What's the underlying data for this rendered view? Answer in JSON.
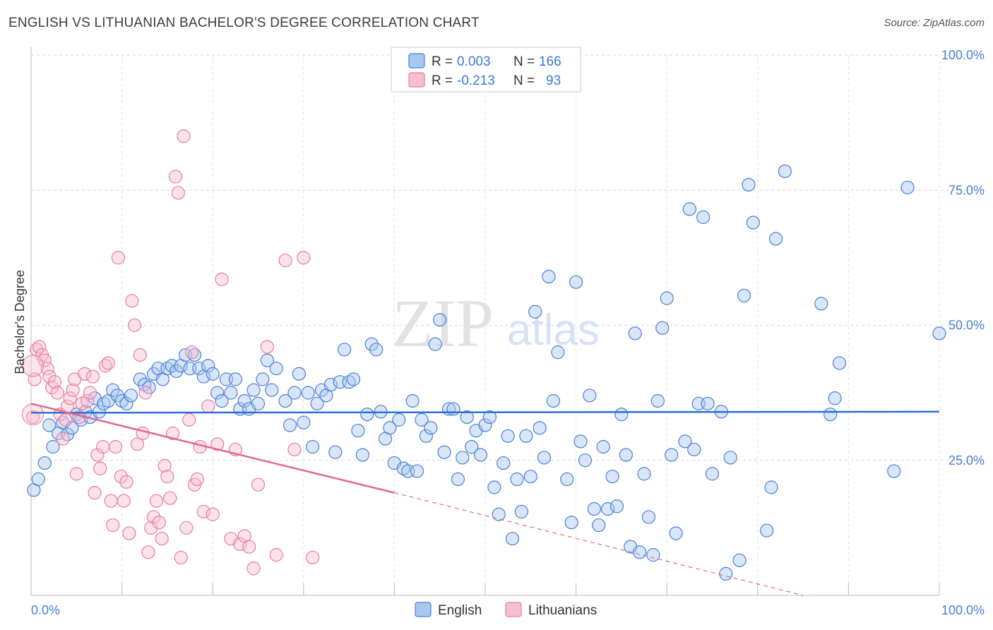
{
  "header": {
    "title": "ENGLISH VS LITHUANIAN BACHELOR'S DEGREE CORRELATION CHART",
    "source": "Source: ZipAtlas.com"
  },
  "watermark": {
    "zip": "ZIP",
    "atlas": "atlas"
  },
  "legend_box": {
    "rows": [
      {
        "r_label": "R =",
        "r_value": "0.003",
        "n_label": "N =",
        "n_value": "166",
        "color": "#a8c8f0",
        "stroke": "#4a7fd6"
      },
      {
        "r_label": "R =",
        "r_value": "-0.213",
        "n_label": "N =",
        "n_value": "93",
        "color": "#f8bfd0",
        "stroke": "#e87aa0"
      }
    ]
  },
  "bottom_legend": {
    "items": [
      {
        "label": "English",
        "color": "#a8c8f0",
        "stroke": "#4a7fd6"
      },
      {
        "label": "Lithuanians",
        "color": "#f8bfd0",
        "stroke": "#e87aa0"
      }
    ]
  },
  "chart_data": {
    "type": "scatter",
    "title": "ENGLISH VS LITHUANIAN BACHELOR'S DEGREE CORRELATION CHART",
    "xlabel": "",
    "ylabel": "Bachelor's Degree",
    "xlim": [
      0,
      100
    ],
    "ylim": [
      0,
      100
    ],
    "x_tick_labels": [
      "0.0%",
      "100.0%"
    ],
    "y_tick_labels": [
      {
        "value": 100,
        "label": "100.0%"
      },
      {
        "value": 75,
        "label": "75.0%"
      },
      {
        "value": 50,
        "label": "50.0%"
      },
      {
        "value": 25,
        "label": "25.0%"
      }
    ],
    "grid": true,
    "legend_position": "top-center",
    "series": [
      {
        "name": "English",
        "color": "#a8c8f0",
        "stroke": "#4a7fd6",
        "line_color": "#2f6fd0",
        "R": 0.003,
        "N": 166,
        "trend": {
          "x": [
            0,
            100
          ],
          "y": [
            33.8,
            34.0
          ]
        },
        "points": [
          [
            0.3,
            19.5
          ],
          [
            0.8,
            21.5
          ],
          [
            1.5,
            24.5
          ],
          [
            2.0,
            31.5
          ],
          [
            2.4,
            27.5
          ],
          [
            3.0,
            30.0
          ],
          [
            3.5,
            32.0
          ],
          [
            4.0,
            29.8
          ],
          [
            4.5,
            31.0
          ],
          [
            5.0,
            33.5
          ],
          [
            5.5,
            32.5
          ],
          [
            6.0,
            34.0
          ],
          [
            6.5,
            33.0
          ],
          [
            7.0,
            36.5
          ],
          [
            7.5,
            34.0
          ],
          [
            8.0,
            35.5
          ],
          [
            8.5,
            36.0
          ],
          [
            9.0,
            38.0
          ],
          [
            9.5,
            37.0
          ],
          [
            10.0,
            36.0
          ],
          [
            10.5,
            35.5
          ],
          [
            11.0,
            37.0
          ],
          [
            12.0,
            40.0
          ],
          [
            12.5,
            39.0
          ],
          [
            13.0,
            38.5
          ],
          [
            13.5,
            41.0
          ],
          [
            14.0,
            42.0
          ],
          [
            14.5,
            40.0
          ],
          [
            15.0,
            42.0
          ],
          [
            15.5,
            42.5
          ],
          [
            16.0,
            41.5
          ],
          [
            16.5,
            42.5
          ],
          [
            17.0,
            44.5
          ],
          [
            17.5,
            42.0
          ],
          [
            18.0,
            44.5
          ],
          [
            18.5,
            42.0
          ],
          [
            19.0,
            40.5
          ],
          [
            19.5,
            42.5
          ],
          [
            20.0,
            41.0
          ],
          [
            20.5,
            37.5
          ],
          [
            21.0,
            36.0
          ],
          [
            21.5,
            40.0
          ],
          [
            22.0,
            37.5
          ],
          [
            22.5,
            40.0
          ],
          [
            23.0,
            34.5
          ],
          [
            23.5,
            36.0
          ],
          [
            24.0,
            34.5
          ],
          [
            24.5,
            38.0
          ],
          [
            25.0,
            35.5
          ],
          [
            25.5,
            40.0
          ],
          [
            26.0,
            43.5
          ],
          [
            26.5,
            38.0
          ],
          [
            27.0,
            42.0
          ],
          [
            28.0,
            36.0
          ],
          [
            28.5,
            31.5
          ],
          [
            29.0,
            37.5
          ],
          [
            29.5,
            41.0
          ],
          [
            30.0,
            32.0
          ],
          [
            30.5,
            37.5
          ],
          [
            31.0,
            27.5
          ],
          [
            31.5,
            35.5
          ],
          [
            32.0,
            38.0
          ],
          [
            32.5,
            37.0
          ],
          [
            33.0,
            39.0
          ],
          [
            33.5,
            26.5
          ],
          [
            34.0,
            39.5
          ],
          [
            34.5,
            45.5
          ],
          [
            35.0,
            39.5
          ],
          [
            35.5,
            40.0
          ],
          [
            36.0,
            30.5
          ],
          [
            36.5,
            26.0
          ],
          [
            37.0,
            33.5
          ],
          [
            37.5,
            46.5
          ],
          [
            38.0,
            45.5
          ],
          [
            38.5,
            34.0
          ],
          [
            39.0,
            29.0
          ],
          [
            39.5,
            31.0
          ],
          [
            40.0,
            24.5
          ],
          [
            40.5,
            32.5
          ],
          [
            41.0,
            23.5
          ],
          [
            41.5,
            23.0
          ],
          [
            42.0,
            36.0
          ],
          [
            42.5,
            23.0
          ],
          [
            43.0,
            32.5
          ],
          [
            43.5,
            29.5
          ],
          [
            44.0,
            31.0
          ],
          [
            44.5,
            46.5
          ],
          [
            45.0,
            51.0
          ],
          [
            45.5,
            26.5
          ],
          [
            46.0,
            34.5
          ],
          [
            46.5,
            34.5
          ],
          [
            47.0,
            21.5
          ],
          [
            47.5,
            25.5
          ],
          [
            48.0,
            33.0
          ],
          [
            48.5,
            27.5
          ],
          [
            49.0,
            30.5
          ],
          [
            49.5,
            26.0
          ],
          [
            50.0,
            31.5
          ],
          [
            50.5,
            33.0
          ],
          [
            51.0,
            20.0
          ],
          [
            51.5,
            15.0
          ],
          [
            52.0,
            24.5
          ],
          [
            52.5,
            29.5
          ],
          [
            53.0,
            10.5
          ],
          [
            53.5,
            21.5
          ],
          [
            54.0,
            15.5
          ],
          [
            54.5,
            29.5
          ],
          [
            55.0,
            22.0
          ],
          [
            55.5,
            52.5
          ],
          [
            56.0,
            31.0
          ],
          [
            56.5,
            25.5
          ],
          [
            57.0,
            59.0
          ],
          [
            57.5,
            36.0
          ],
          [
            58.0,
            45.0
          ],
          [
            59.0,
            21.5
          ],
          [
            59.5,
            13.5
          ],
          [
            60.0,
            58.0
          ],
          [
            60.5,
            28.5
          ],
          [
            61.0,
            25.0
          ],
          [
            61.5,
            37.0
          ],
          [
            62.0,
            16.0
          ],
          [
            62.5,
            13.0
          ],
          [
            63.0,
            27.5
          ],
          [
            63.5,
            16.0
          ],
          [
            64.0,
            22.0
          ],
          [
            64.5,
            16.5
          ],
          [
            65.0,
            33.5
          ],
          [
            65.5,
            26.0
          ],
          [
            66.0,
            9.0
          ],
          [
            66.5,
            48.5
          ],
          [
            67.0,
            8.0
          ],
          [
            67.5,
            22.5
          ],
          [
            68.0,
            14.5
          ],
          [
            68.5,
            7.5
          ],
          [
            69.0,
            36.0
          ],
          [
            69.5,
            49.5
          ],
          [
            70.0,
            55.0
          ],
          [
            70.5,
            26.0
          ],
          [
            71.0,
            11.5
          ],
          [
            72.0,
            28.5
          ],
          [
            72.5,
            71.5
          ],
          [
            73.0,
            27.0
          ],
          [
            73.5,
            35.5
          ],
          [
            74.0,
            70.0
          ],
          [
            74.5,
            35.5
          ],
          [
            75.0,
            22.5
          ],
          [
            76.0,
            34.0
          ],
          [
            76.5,
            4.0
          ],
          [
            77.0,
            25.5
          ],
          [
            78.0,
            6.5
          ],
          [
            78.5,
            55.5
          ],
          [
            79.0,
            76.0
          ],
          [
            79.5,
            69.0
          ],
          [
            81.0,
            12.0
          ],
          [
            81.5,
            20.0
          ],
          [
            82.0,
            66.0
          ],
          [
            83.0,
            78.5
          ],
          [
            87.0,
            54.0
          ],
          [
            88.0,
            33.5
          ],
          [
            88.5,
            36.5
          ],
          [
            89.0,
            43.0
          ],
          [
            95.0,
            23.0
          ],
          [
            96.5,
            75.5
          ],
          [
            100.0,
            48.5
          ]
        ]
      },
      {
        "name": "Lithuanians",
        "color": "#f8bfd0",
        "stroke": "#e87aa0",
        "line_color": "#e06892",
        "R": -0.213,
        "N": 93,
        "trend": {
          "x": [
            0,
            40
          ],
          "y": [
            35.5,
            19.0
          ]
        },
        "trend_dashed": {
          "x": [
            40,
            85
          ],
          "y": [
            19.0,
            0.0
          ]
        },
        "points": [
          [
            0.2,
            33.0
          ],
          [
            0.4,
            40.0
          ],
          [
            0.6,
            45.5
          ],
          [
            0.9,
            46.0
          ],
          [
            1.2,
            44.5
          ],
          [
            1.5,
            43.5
          ],
          [
            1.8,
            42.0
          ],
          [
            2.0,
            40.5
          ],
          [
            2.3,
            38.5
          ],
          [
            2.6,
            39.5
          ],
          [
            2.9,
            37.5
          ],
          [
            3.2,
            33.5
          ],
          [
            3.5,
            29.0
          ],
          [
            3.8,
            32.5
          ],
          [
            4.0,
            35.0
          ],
          [
            4.3,
            36.5
          ],
          [
            4.6,
            38.0
          ],
          [
            4.8,
            40.0
          ],
          [
            5.0,
            22.5
          ],
          [
            5.3,
            33.0
          ],
          [
            5.6,
            35.5
          ],
          [
            5.9,
            41.0
          ],
          [
            6.2,
            36.0
          ],
          [
            6.5,
            37.5
          ],
          [
            6.8,
            40.5
          ],
          [
            7.0,
            19.0
          ],
          [
            7.3,
            26.0
          ],
          [
            7.6,
            23.5
          ],
          [
            7.9,
            27.5
          ],
          [
            8.2,
            42.5
          ],
          [
            8.5,
            43.0
          ],
          [
            8.8,
            17.5
          ],
          [
            9.0,
            13.0
          ],
          [
            9.3,
            27.5
          ],
          [
            9.6,
            62.5
          ],
          [
            9.9,
            22.0
          ],
          [
            10.2,
            17.5
          ],
          [
            10.5,
            21.0
          ],
          [
            10.8,
            11.5
          ],
          [
            11.1,
            54.5
          ],
          [
            11.4,
            50.0
          ],
          [
            11.7,
            28.0
          ],
          [
            12.0,
            44.5
          ],
          [
            12.3,
            30.0
          ],
          [
            12.6,
            37.5
          ],
          [
            12.9,
            8.0
          ],
          [
            13.2,
            12.5
          ],
          [
            13.5,
            14.5
          ],
          [
            13.8,
            17.5
          ],
          [
            14.1,
            13.5
          ],
          [
            14.4,
            10.5
          ],
          [
            14.7,
            24.0
          ],
          [
            15.0,
            22.0
          ],
          [
            15.3,
            18.0
          ],
          [
            15.6,
            30.0
          ],
          [
            15.9,
            77.5
          ],
          [
            16.2,
            74.5
          ],
          [
            16.5,
            7.0
          ],
          [
            16.8,
            85.0
          ],
          [
            17.1,
            12.5
          ],
          [
            17.4,
            32.5
          ],
          [
            17.7,
            45.0
          ],
          [
            18.0,
            20.5
          ],
          [
            18.3,
            21.5
          ],
          [
            18.6,
            27.5
          ],
          [
            19.0,
            15.5
          ],
          [
            19.5,
            35.0
          ],
          [
            20.0,
            15.0
          ],
          [
            20.5,
            28.0
          ],
          [
            21.0,
            58.5
          ],
          [
            22.0,
            10.5
          ],
          [
            22.5,
            27.0
          ],
          [
            23.0,
            9.5
          ],
          [
            23.5,
            11.0
          ],
          [
            24.0,
            9.0
          ],
          [
            24.5,
            5.0
          ],
          [
            25.0,
            20.5
          ],
          [
            26.0,
            46.0
          ],
          [
            27.0,
            7.5
          ],
          [
            28.0,
            62.0
          ],
          [
            29.0,
            27.0
          ],
          [
            30.0,
            62.5
          ],
          [
            31.0,
            7.0
          ]
        ]
      }
    ]
  }
}
